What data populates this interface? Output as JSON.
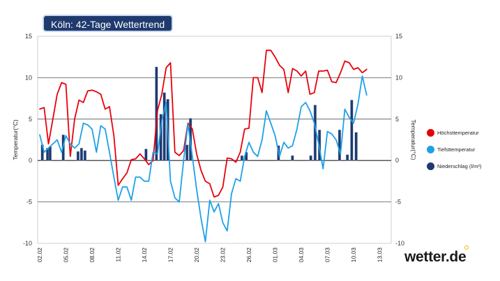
{
  "title": "Köln: 42-Tage Wettertrend",
  "brand": "wetter.de",
  "chart_data": {
    "type": "line",
    "ylabel_left": "Temperatur(°C)",
    "ylabel_right": "Temperatur(°C)",
    "ylim": [
      -10,
      15
    ],
    "yticks": [
      "15",
      "10",
      "5",
      "0",
      "-5",
      "-10"
    ],
    "ytick_values": [
      15,
      10,
      5,
      0,
      -5,
      -10
    ],
    "x_tick_labels": [
      "02.02",
      "05.02",
      "08.02",
      "11.02",
      "14.02",
      "17.02",
      "20.02",
      "23.02",
      "26.02",
      "01.03",
      "04.03",
      "07.03",
      "10.03",
      "13.03"
    ],
    "x_days": 42,
    "series": [
      {
        "name": "Höchsttemperatur",
        "color": "#e8000b",
        "points": [
          [
            0,
            6.2
          ],
          [
            0.5,
            6.4
          ],
          [
            1,
            2.0
          ],
          [
            1.5,
            5.0
          ],
          [
            2,
            8.0
          ],
          [
            2.5,
            9.4
          ],
          [
            3,
            9.2
          ],
          [
            3.5,
            0.5
          ],
          [
            4,
            5.0
          ],
          [
            4.5,
            7.3
          ],
          [
            5,
            7.0
          ],
          [
            5.5,
            8.4
          ],
          [
            6,
            8.5
          ],
          [
            6.5,
            8.3
          ],
          [
            7,
            8.0
          ],
          [
            7.5,
            6.2
          ],
          [
            8,
            6.5
          ],
          [
            8.5,
            3.0
          ],
          [
            9,
            -3.0
          ],
          [
            9.5,
            -2.2
          ],
          [
            10,
            -1.5
          ],
          [
            10.5,
            0.1
          ],
          [
            11,
            0.2
          ],
          [
            11.5,
            0.8
          ],
          [
            12,
            0.2
          ],
          [
            12.5,
            -0.5
          ],
          [
            13,
            0.0
          ],
          [
            13.5,
            6.0
          ],
          [
            14,
            8.0
          ],
          [
            14.5,
            11.2
          ],
          [
            15,
            11.8
          ],
          [
            15.5,
            1.0
          ],
          [
            16,
            0.6
          ],
          [
            16.5,
            1.2
          ],
          [
            17,
            4.5
          ],
          [
            17.5,
            3.8
          ],
          [
            18,
            0.8
          ],
          [
            18.5,
            -1.2
          ],
          [
            19,
            -2.5
          ],
          [
            19.5,
            -2.8
          ],
          [
            20,
            -4.4
          ],
          [
            20.5,
            -4.2
          ],
          [
            21,
            -3.2
          ],
          [
            21.5,
            0.3
          ],
          [
            22,
            0.2
          ],
          [
            22.5,
            -0.2
          ],
          [
            23,
            1.0
          ],
          [
            23.5,
            3.8
          ],
          [
            24,
            3.9
          ],
          [
            24.5,
            10.0
          ],
          [
            25,
            10.0
          ],
          [
            25.5,
            8.2
          ],
          [
            26,
            13.3
          ],
          [
            26.5,
            13.3
          ],
          [
            27,
            12.5
          ],
          [
            27.5,
            11.5
          ],
          [
            28,
            11.0
          ],
          [
            28.5,
            8.2
          ],
          [
            29,
            11.1
          ],
          [
            29.5,
            10.8
          ],
          [
            30,
            10.2
          ],
          [
            30.5,
            10.8
          ],
          [
            31,
            8.0
          ],
          [
            31.5,
            8.2
          ],
          [
            32,
            10.8
          ],
          [
            32.5,
            10.8
          ],
          [
            33,
            10.9
          ],
          [
            33.5,
            9.5
          ],
          [
            34,
            9.4
          ],
          [
            34.5,
            10.6
          ],
          [
            35,
            12.0
          ],
          [
            35.5,
            11.8
          ],
          [
            36,
            11.0
          ],
          [
            36.5,
            11.2
          ],
          [
            37,
            10.6
          ],
          [
            37.5,
            11.0
          ]
        ]
      },
      {
        "name": "Tiefsttemperatur",
        "color": "#1ea0e8",
        "points": [
          [
            0,
            3.1
          ],
          [
            0.5,
            1.0
          ],
          [
            1,
            1.5
          ],
          [
            1.5,
            2.0
          ],
          [
            2,
            2.5
          ],
          [
            2.5,
            1.0
          ],
          [
            3,
            3.0
          ],
          [
            3.5,
            2.0
          ],
          [
            4,
            1.5
          ],
          [
            4.5,
            2.0
          ],
          [
            5,
            4.5
          ],
          [
            5.5,
            4.3
          ],
          [
            6,
            3.8
          ],
          [
            6.5,
            1.0
          ],
          [
            7,
            4.2
          ],
          [
            7.5,
            3.8
          ],
          [
            8,
            1.0
          ],
          [
            8.5,
            -2.0
          ],
          [
            9,
            -4.8
          ],
          [
            9.5,
            -3.2
          ],
          [
            10,
            -3.2
          ],
          [
            10.5,
            -4.8
          ],
          [
            11,
            -2.0
          ],
          [
            11.5,
            -2.0
          ],
          [
            12,
            -2.5
          ],
          [
            12.5,
            -2.5
          ],
          [
            13,
            1.0
          ],
          [
            13.5,
            0.8
          ],
          [
            14,
            4.8
          ],
          [
            14.5,
            7.0
          ],
          [
            15,
            -2.5
          ],
          [
            15.5,
            -4.5
          ],
          [
            16,
            -5.0
          ],
          [
            16.5,
            0.0
          ],
          [
            17,
            4.4
          ],
          [
            17.5,
            0.5
          ],
          [
            18,
            -3.5
          ],
          [
            18.5,
            -7.0
          ],
          [
            19,
            -9.8
          ],
          [
            19.5,
            -4.8
          ],
          [
            20,
            -6.2
          ],
          [
            20.5,
            -5.2
          ],
          [
            21,
            -7.5
          ],
          [
            21.5,
            -8.5
          ],
          [
            22,
            -4.0
          ],
          [
            22.5,
            -2.2
          ],
          [
            23,
            -2.5
          ],
          [
            23.5,
            0.5
          ],
          [
            24,
            2.2
          ],
          [
            24.5,
            1.0
          ],
          [
            25,
            0.5
          ],
          [
            25.5,
            2.5
          ],
          [
            26,
            6.0
          ],
          [
            26.5,
            4.5
          ],
          [
            27,
            3.0
          ],
          [
            27.5,
            0.5
          ],
          [
            28,
            2.2
          ],
          [
            28.5,
            1.5
          ],
          [
            29,
            1.8
          ],
          [
            29.5,
            3.8
          ],
          [
            30,
            6.5
          ],
          [
            30.5,
            7.0
          ],
          [
            31,
            6.0
          ],
          [
            31.5,
            4.5
          ],
          [
            32,
            2.0
          ],
          [
            32.5,
            -1.0
          ],
          [
            33,
            3.5
          ],
          [
            33.5,
            3.2
          ],
          [
            34,
            2.5
          ],
          [
            34.5,
            0.8
          ],
          [
            35,
            6.2
          ],
          [
            35.5,
            5.2
          ],
          [
            36,
            4.5
          ],
          [
            36.5,
            6.8
          ],
          [
            37,
            10.2
          ],
          [
            37.5,
            7.9
          ]
        ]
      }
    ],
    "bars": {
      "name": "Niederschlag (l/m²)",
      "color": "#1f3a6e",
      "points": [
        [
          0.3,
          1.9
        ],
        [
          0.9,
          1.5
        ],
        [
          1.2,
          1.7
        ],
        [
          2.7,
          3.1
        ],
        [
          4.4,
          1.1
        ],
        [
          4.8,
          1.5
        ],
        [
          5.2,
          1.2
        ],
        [
          12.2,
          1.4
        ],
        [
          13.4,
          11.3
        ],
        [
          13.9,
          5.6
        ],
        [
          14.3,
          8.2
        ],
        [
          14.7,
          7.4
        ],
        [
          16.9,
          1.9
        ],
        [
          17.3,
          5.1
        ],
        [
          23.2,
          0.6
        ],
        [
          23.7,
          1.0
        ],
        [
          27.4,
          1.8
        ],
        [
          29.0,
          0.6
        ],
        [
          31.1,
          0.6
        ],
        [
          31.6,
          6.7
        ],
        [
          32.1,
          3.7
        ],
        [
          34.4,
          3.7
        ],
        [
          35.3,
          0.7
        ],
        [
          35.8,
          7.3
        ],
        [
          36.3,
          3.4
        ]
      ]
    },
    "legend": [
      "Höchsttemperatur",
      "Tiefsttemperatur",
      "Niederschlag (l/m²)"
    ],
    "legend_position": "right",
    "grid": true
  },
  "legend_colors": {
    "high": "#e8000b",
    "low": "#1ea0e8",
    "rain": "#1f3a6e"
  }
}
